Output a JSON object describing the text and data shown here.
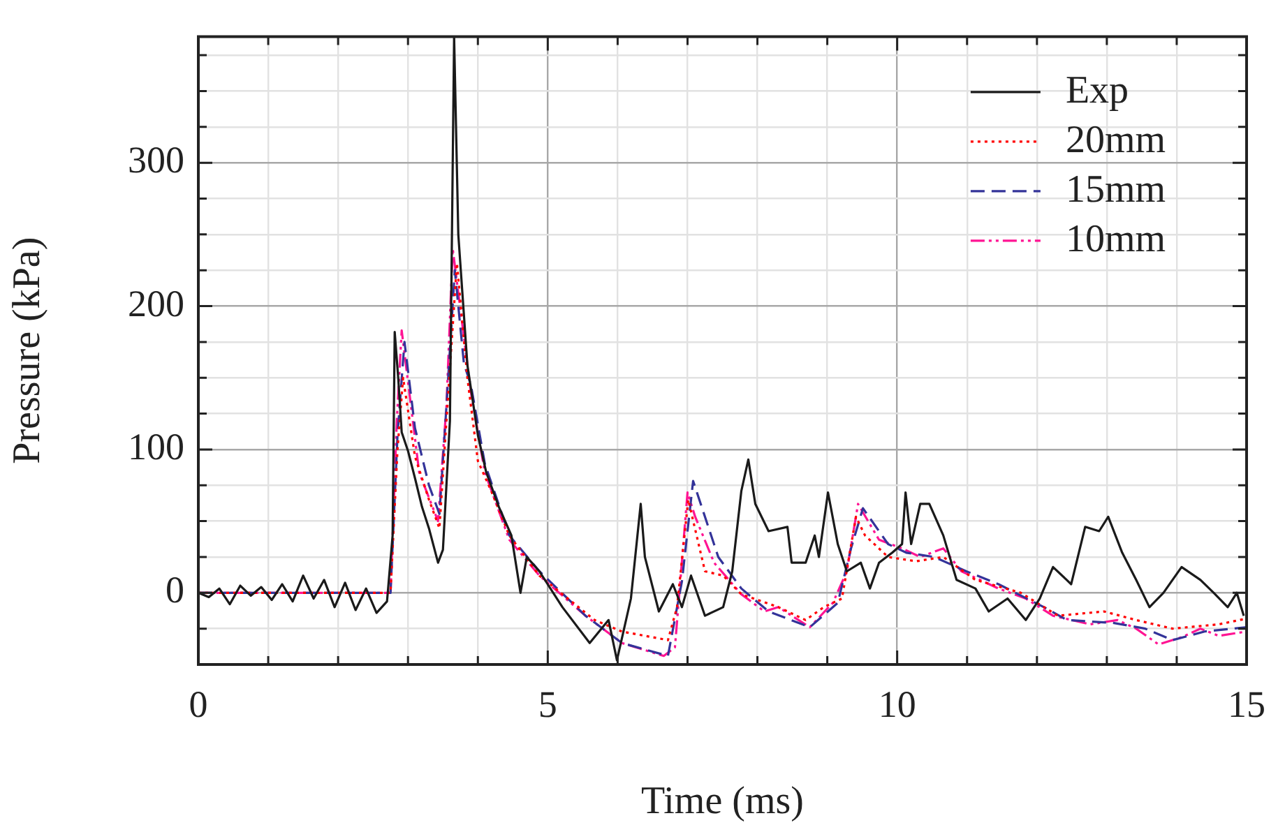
{
  "chart_data": {
    "type": "line",
    "xlabel": "Time (ms)",
    "ylabel": "Pressure (kPa)",
    "xlim": [
      0,
      15
    ],
    "ylim": [
      -50,
      388
    ],
    "xticks": [
      0,
      {
        "value": 1,
        "label": null
      },
      {
        "value": 2,
        "label": null
      },
      {
        "value": 3,
        "label": null
      },
      {
        "value": 4,
        "label": null
      },
      5,
      {
        "value": 6,
        "label": null
      },
      {
        "value": 7,
        "label": null
      },
      {
        "value": 8,
        "label": null
      },
      {
        "value": 9,
        "label": null
      },
      10,
      {
        "value": 11,
        "label": null
      },
      {
        "value": 12,
        "label": null
      },
      {
        "value": 13,
        "label": null
      },
      {
        "value": 14,
        "label": null
      },
      15
    ],
    "yticks": [
      {
        "value": -25,
        "label": null
      },
      0,
      {
        "value": 25,
        "label": null
      },
      {
        "value": 50,
        "label": null
      },
      {
        "value": 75,
        "label": null
      },
      100,
      {
        "value": 125,
        "label": null
      },
      {
        "value": 150,
        "label": null
      },
      {
        "value": 175,
        "label": null
      },
      200,
      {
        "value": 225,
        "label": null
      },
      {
        "value": 250,
        "label": null
      },
      {
        "value": 275,
        "label": null
      },
      300,
      {
        "value": 325,
        "label": null
      },
      {
        "value": 350,
        "label": null
      },
      {
        "value": 375,
        "label": null
      }
    ],
    "grid": true,
    "legend": "top right",
    "marker": "none",
    "series": [
      {
        "name": "Exp",
        "color": "#1a1a1a",
        "line_style": "solid",
        "x": [
          0,
          0.15,
          0.3,
          0.45,
          0.6,
          0.75,
          0.9,
          1.05,
          1.2,
          1.35,
          1.5,
          1.65,
          1.8,
          1.95,
          2.1,
          2.25,
          2.4,
          2.55,
          2.7,
          2.78,
          2.81,
          2.86,
          2.91,
          3.0,
          3.1,
          3.2,
          3.3,
          3.43,
          3.5,
          3.6,
          3.66,
          3.72,
          3.85,
          3.93,
          4.0,
          4.12,
          4.3,
          4.48,
          4.61,
          4.7,
          4.88,
          5.21,
          5.6,
          5.87,
          5.99,
          6.19,
          6.33,
          6.39,
          6.59,
          6.79,
          6.92,
          7.05,
          7.25,
          7.51,
          7.64,
          7.77,
          7.87,
          7.97,
          8.16,
          8.43,
          8.49,
          8.69,
          8.82,
          8.88,
          9.01,
          9.15,
          9.28,
          9.48,
          9.61,
          9.74,
          9.93,
          10.07,
          10.12,
          10.2,
          10.33,
          10.46,
          10.66,
          10.85,
          11.12,
          11.31,
          11.58,
          11.84,
          12.04,
          12.23,
          12.49,
          12.69,
          12.89,
          13.02,
          13.22,
          13.42,
          13.61,
          13.81,
          14.07,
          14.34,
          14.53,
          14.73,
          14.86,
          14.96
        ],
        "values": [
          0,
          -3,
          3,
          -8,
          5,
          -2,
          4,
          -5,
          6,
          -6,
          12,
          -4,
          9,
          -10,
          7,
          -12,
          3,
          -14,
          -6,
          40,
          182,
          150,
          112,
          99,
          80,
          60,
          45,
          21,
          30,
          120,
          388,
          250,
          159,
          133,
          110,
          84,
          60,
          40,
          0,
          25,
          15,
          -10,
          -35,
          -19,
          -47,
          -4,
          62,
          25,
          -13,
          6,
          -10,
          12,
          -16,
          -10,
          15,
          71,
          93,
          62,
          43,
          46,
          21,
          21,
          40,
          25,
          70,
          34,
          15,
          21,
          3,
          21,
          28,
          34,
          70,
          34,
          62,
          62,
          40,
          9,
          3,
          -13,
          -4,
          -19,
          -4,
          18,
          6,
          46,
          43,
          53,
          28,
          9,
          -10,
          0,
          18,
          9,
          0,
          -10,
          0,
          -16
        ]
      },
      {
        "name": "20mm",
        "color": "#ff0000",
        "line_style": "dotted",
        "x": [
          0,
          2.75,
          2.85,
          2.93,
          3.1,
          3.3,
          3.45,
          3.55,
          3.7,
          3.85,
          4.0,
          4.2,
          4.45,
          4.88,
          5.67,
          6.06,
          6.72,
          6.85,
          7.01,
          7.25,
          7.51,
          7.77,
          8.3,
          8.69,
          8.95,
          9.21,
          9.41,
          9.54,
          9.87,
          10.27,
          10.66,
          11.12,
          11.77,
          12.3,
          12.96,
          13.42,
          13.94,
          14.6,
          15
        ],
        "values": [
          0,
          0,
          100,
          150,
          95,
          65,
          45,
          120,
          230,
          150,
          92,
          70,
          40,
          12,
          -19,
          -27,
          -33,
          -10,
          65,
          15,
          12,
          -1,
          -10,
          -19,
          -10,
          -4,
          53,
          40,
          25,
          22,
          25,
          9,
          0,
          -16,
          -13,
          -19,
          -25,
          -22,
          -18
        ]
      },
      {
        "name": "15mm",
        "color": "#333399",
        "line_style": "dashed",
        "x": [
          0,
          2.75,
          2.85,
          2.95,
          3.1,
          3.3,
          3.45,
          3.55,
          3.67,
          3.8,
          3.9,
          4.1,
          4.45,
          4.88,
          5.54,
          6.06,
          6.72,
          6.92,
          7.08,
          7.44,
          7.77,
          8.16,
          8.75,
          9.15,
          9.34,
          9.51,
          9.87,
          10.13,
          10.53,
          10.99,
          11.45,
          12.1,
          12.43,
          13.09,
          13.55,
          13.94,
          14.4,
          15
        ],
        "values": [
          0,
          0,
          110,
          175,
          115,
          75,
          55,
          130,
          225,
          160,
          145,
          90,
          40,
          15,
          -16,
          -35,
          -44,
          8,
          78,
          25,
          3,
          -13,
          -24,
          -7,
          31,
          59,
          34,
          28,
          25,
          15,
          6,
          -10,
          -19,
          -21,
          -25,
          -33,
          -27,
          -24
        ]
      },
      {
        "name": "10mm",
        "color": "#ff1493",
        "line_style": "dashdot",
        "x": [
          0,
          2.75,
          2.84,
          2.91,
          3.16,
          3.43,
          3.55,
          3.64,
          3.9,
          4.1,
          4.45,
          4.88,
          5.54,
          6.06,
          6.66,
          6.82,
          7.0,
          7.11,
          7.38,
          7.77,
          8.1,
          8.3,
          8.75,
          9.08,
          9.28,
          9.44,
          9.74,
          10.07,
          10.33,
          10.66,
          10.92,
          11.45,
          11.84,
          12.23,
          12.76,
          13.15,
          13.42,
          13.74,
          14.07,
          14.34,
          14.6,
          15
        ],
        "values": [
          0,
          0,
          120,
          183,
          84,
          50,
          130,
          240,
          140,
          84,
          37,
          12,
          -16,
          -35,
          -44,
          -38,
          70,
          53,
          21,
          -1,
          -13,
          -10,
          -24,
          -7,
          15,
          62,
          37,
          31,
          25,
          31,
          15,
          3,
          -4,
          -16,
          -22,
          -19,
          -25,
          -36,
          -31,
          -25,
          -30,
          -27
        ]
      }
    ]
  }
}
